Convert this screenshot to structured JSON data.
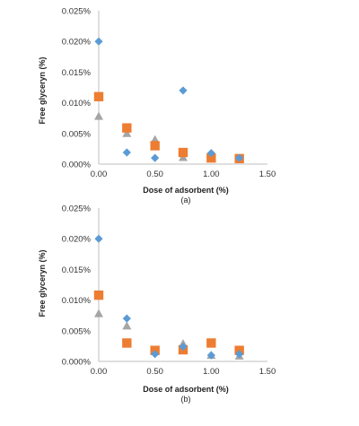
{
  "chart_data": [
    {
      "type": "scatter",
      "caption": "(a)",
      "xlabel": "Dose of adsorbent (%)",
      "ylabel": "Free glyceryn (%)",
      "xlim": [
        0,
        1.5
      ],
      "ylim": [
        0,
        0.025
      ],
      "xticks": [
        "0.00",
        "0.50",
        "1.00",
        "1.50"
      ],
      "yticks": [
        "0.000%",
        "0.005%",
        "0.010%",
        "0.015%",
        "0.020%",
        "0.025%"
      ],
      "grid": false,
      "legend": "none",
      "series": [
        {
          "marker": "diamond",
          "color": "#5b9bd5",
          "points": [
            [
              0.0,
              0.02
            ],
            [
              0.25,
              0.0019
            ],
            [
              0.5,
              0.001
            ],
            [
              0.75,
              0.012
            ],
            [
              1.0,
              0.0018
            ],
            [
              1.25,
              0.001
            ]
          ]
        },
        {
          "marker": "square",
          "color": "#ed7d31",
          "points": [
            [
              0.0,
              0.011
            ],
            [
              0.25,
              0.0059
            ],
            [
              0.5,
              0.003
            ],
            [
              0.75,
              0.0019
            ],
            [
              1.0,
              0.001
            ],
            [
              1.25,
              0.0009
            ]
          ]
        },
        {
          "marker": "triangle",
          "color": "#a5a5a5",
          "points": [
            [
              0.0,
              0.0078
            ],
            [
              0.25,
              0.005
            ],
            [
              0.5,
              0.004
            ],
            [
              0.75,
              0.0011
            ],
            [
              1.0,
              0.0012
            ],
            [
              1.25,
              0.0008
            ]
          ]
        }
      ]
    },
    {
      "type": "scatter",
      "caption": "(b)",
      "xlabel": "Dose of adsorbent (%)",
      "ylabel": "Free glyceryn (%)",
      "xlim": [
        0,
        1.5
      ],
      "ylim": [
        0,
        0.025
      ],
      "xticks": [
        "0.00",
        "0.50",
        "1.00",
        "1.50"
      ],
      "yticks": [
        "0.000%",
        "0.005%",
        "0.010%",
        "0.015%",
        "0.020%",
        "0.025%"
      ],
      "grid": false,
      "legend": "none",
      "series": [
        {
          "marker": "diamond",
          "color": "#5b9bd5",
          "points": [
            [
              0.0,
              0.02
            ],
            [
              0.25,
              0.007
            ],
            [
              0.5,
              0.0012
            ],
            [
              0.75,
              0.0024
            ],
            [
              1.0,
              0.001
            ],
            [
              1.25,
              0.0012
            ]
          ]
        },
        {
          "marker": "square",
          "color": "#ed7d31",
          "points": [
            [
              0.0,
              0.0108
            ],
            [
              0.25,
              0.003
            ],
            [
              0.5,
              0.0018
            ],
            [
              0.75,
              0.0019
            ],
            [
              1.0,
              0.003
            ],
            [
              1.25,
              0.0018
            ]
          ]
        },
        {
          "marker": "triangle",
          "color": "#a5a5a5",
          "points": [
            [
              0.0,
              0.0078
            ],
            [
              0.25,
              0.0058
            ],
            [
              0.5,
              0.0018
            ],
            [
              0.75,
              0.0029
            ],
            [
              1.0,
              0.001
            ],
            [
              1.25,
              0.0009
            ]
          ]
        }
      ]
    }
  ]
}
